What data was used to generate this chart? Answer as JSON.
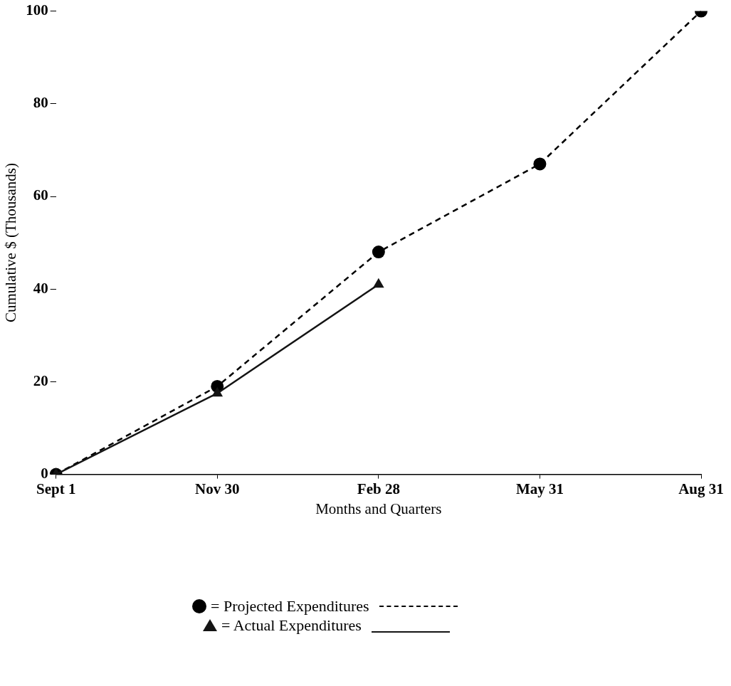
{
  "chart_data": {
    "type": "line",
    "xlabel": "Months and Quarters",
    "ylabel": "Cumulative $ (Thousands)",
    "categories": [
      "Sept 1",
      "Nov 30",
      "Feb 28",
      "May 31",
      "Aug 31"
    ],
    "ylim": [
      0,
      100
    ],
    "yticks": [
      0,
      20,
      40,
      60,
      80,
      100
    ],
    "grid": false,
    "legend": "bottom",
    "series": [
      {
        "name": "= Projected Expenditures",
        "color": "#000000",
        "marker": "circle",
        "line_style": "dashed",
        "values": [
          0,
          19,
          48,
          67,
          100
        ]
      },
      {
        "name": "= Actual Expenditures",
        "color": "#141414",
        "marker": "triangle",
        "line_style": "solid",
        "values": [
          0,
          17.5,
          41,
          null,
          null
        ]
      }
    ]
  }
}
